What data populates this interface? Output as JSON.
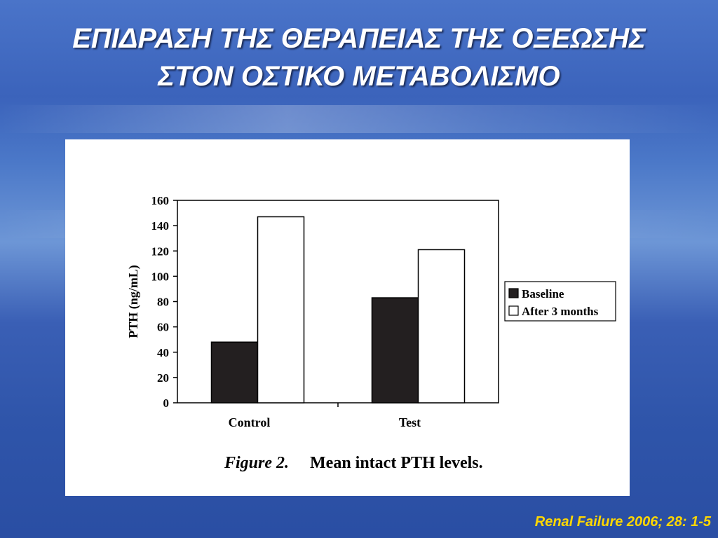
{
  "slide": {
    "title_line1": "ΕΠΙΔΡΑΣΗ ΤΗΣ ΘΕΡΑΠΕΙΑΣ ΤΗΣ ΟΞΕΩΣΗΣ",
    "title_line2": "ΣΤΟΝ ΟΣΤΙΚΟ ΜΕΤΑΒΟΛΙΣΜΟ",
    "citation": "Renal  Failure 2006; 28: 1-5",
    "caption_label": "Figure 2.",
    "caption_text": "Mean intact PTH levels."
  },
  "colors": {
    "title_text": "#ffffff",
    "citation_text": "#ffd700",
    "baseline_bar": "#231f20",
    "after_bar": "#ffffff"
  },
  "chart_data": {
    "type": "bar",
    "categories": [
      "Control",
      "Test"
    ],
    "series": [
      {
        "name": "Baseline",
        "values": [
          48,
          83
        ]
      },
      {
        "name": "After 3 months",
        "values": [
          147,
          121
        ]
      }
    ],
    "title": "",
    "xlabel": "",
    "ylabel": "PTH (ng/mL)",
    "ylim": [
      0,
      160
    ],
    "yticks": [
      0,
      20,
      40,
      60,
      80,
      100,
      120,
      140,
      160
    ],
    "grid": false,
    "legend_position": "right"
  }
}
